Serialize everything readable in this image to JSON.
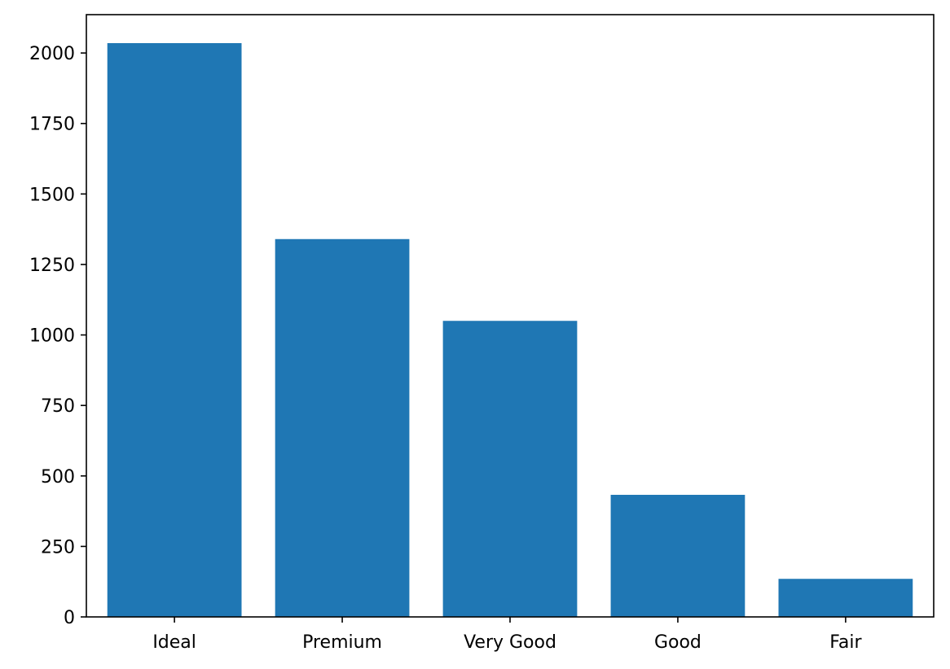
{
  "chart_data": {
    "type": "bar",
    "categories": [
      "Ideal",
      "Premium",
      "Very Good",
      "Good",
      "Fair"
    ],
    "values": [
      2035,
      1340,
      1050,
      433,
      135
    ],
    "ylim": [
      0,
      2136
    ],
    "yticks": [
      0,
      250,
      500,
      750,
      1000,
      1250,
      1500,
      1750,
      2000
    ],
    "ytick_labels": [
      "0",
      "250",
      "500",
      "750",
      "1000",
      "1250",
      "1500",
      "1750",
      "2000"
    ],
    "title": "",
    "xlabel": "",
    "ylabel": "",
    "grid": false,
    "colors": {
      "bar": "#1f77b4",
      "axis": "#000000",
      "background": "#ffffff"
    }
  }
}
